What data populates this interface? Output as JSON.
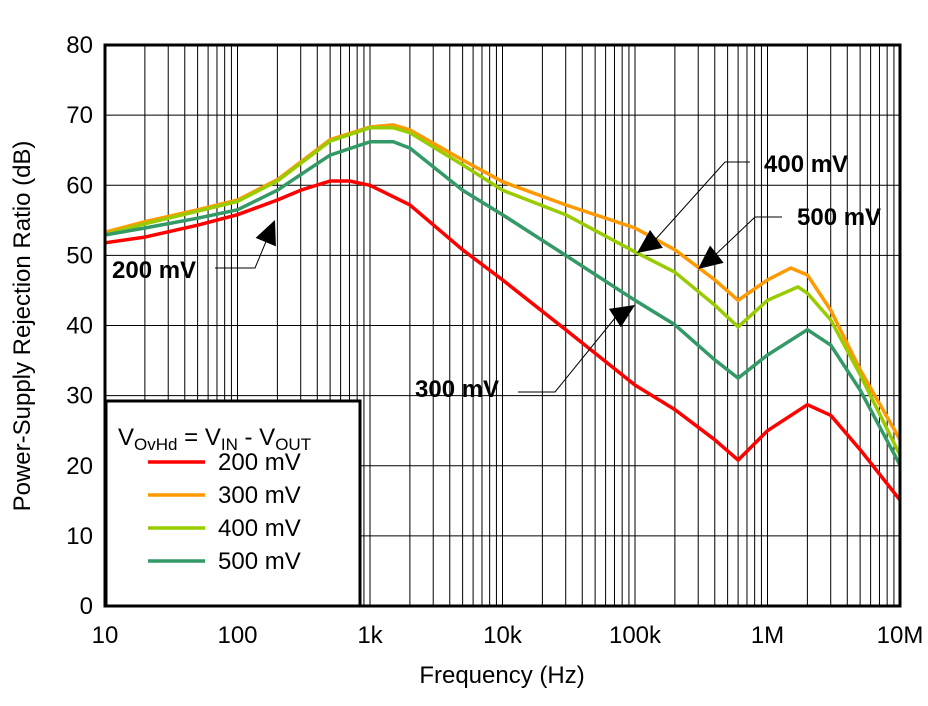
{
  "chart_data": {
    "type": "line",
    "title": "",
    "xlabel": "Frequency (Hz)",
    "ylabel": "Power-Supply Rejection Ratio (dB)",
    "xscale": "log",
    "xlim": [
      10,
      10000000
    ],
    "ylim": [
      0,
      80
    ],
    "grid": true,
    "x_ticks": [
      {
        "value": 10,
        "label": "10"
      },
      {
        "value": 100,
        "label": "100"
      },
      {
        "value": 1000,
        "label": "1k"
      },
      {
        "value": 10000,
        "label": "10k"
      },
      {
        "value": 100000,
        "label": "100k"
      },
      {
        "value": 1000000,
        "label": "1M"
      },
      {
        "value": 10000000,
        "label": "10M"
      }
    ],
    "y_ticks": [
      0,
      10,
      20,
      30,
      40,
      50,
      60,
      70,
      80
    ],
    "legend": {
      "placement": "bottom-left",
      "title": {
        "main": "V",
        "sub1": "OvHd",
        "mid": " = V",
        "sub2": "IN",
        "dash": " - V",
        "sub3": "OUT"
      }
    },
    "series": [
      {
        "name": "200 mV",
        "color": "#ff0000",
        "x": [
          10,
          20,
          50,
          100,
          200,
          300,
          500,
          700,
          1000,
          2000,
          5000,
          10000,
          30000,
          100000,
          200000,
          400000,
          600000,
          1000000,
          2000000,
          3000000,
          5000000,
          10000000
        ],
        "y": [
          51.8,
          52.6,
          54.3,
          55.8,
          57.9,
          59.3,
          60.6,
          60.6,
          60.0,
          57.2,
          50.8,
          46.5,
          39.4,
          31.5,
          28.0,
          23.7,
          20.8,
          25.0,
          28.7,
          27.2,
          22.3,
          15.1
        ]
      },
      {
        "name": "300 mV",
        "color": "#ff9900",
        "x": [
          10,
          20,
          50,
          100,
          200,
          500,
          1000,
          1500,
          2000,
          5000,
          10000,
          30000,
          100000,
          200000,
          400000,
          600000,
          1000000,
          1500000,
          2000000,
          3000000,
          5000000,
          10000000
        ],
        "y": [
          53.3,
          54.8,
          56.5,
          57.9,
          60.8,
          66.5,
          68.3,
          68.6,
          67.9,
          63.6,
          60.5,
          57.2,
          53.9,
          50.8,
          46.5,
          43.6,
          46.5,
          48.2,
          47.2,
          42.2,
          33.7,
          23.7
        ]
      },
      {
        "name": "400 mV",
        "color": "#99cc00",
        "x": [
          10,
          20,
          50,
          100,
          200,
          500,
          1000,
          1500,
          2000,
          5000,
          10000,
          30000,
          100000,
          200000,
          400000,
          600000,
          1000000,
          1700000,
          2000000,
          3000000,
          5000000,
          10000000
        ],
        "y": [
          53.0,
          54.5,
          56.3,
          57.7,
          60.6,
          66.3,
          68.2,
          68.2,
          67.5,
          62.9,
          59.3,
          55.8,
          50.5,
          47.6,
          42.9,
          39.8,
          43.6,
          45.5,
          44.6,
          40.8,
          33.0,
          21.5
        ]
      },
      {
        "name": "500 mV",
        "color": "#339966",
        "x": [
          10,
          20,
          50,
          100,
          200,
          500,
          1000,
          1500,
          2000,
          5000,
          10000,
          30000,
          100000,
          200000,
          400000,
          600000,
          1000000,
          2000000,
          3000000,
          5000000,
          10000000
        ],
        "y": [
          52.9,
          53.9,
          55.3,
          56.5,
          59.3,
          64.3,
          66.2,
          66.2,
          65.3,
          59.3,
          55.8,
          50.0,
          43.6,
          40.1,
          35.1,
          32.5,
          35.8,
          39.4,
          37.2,
          30.8,
          20.1
        ]
      }
    ],
    "annotations": [
      {
        "text": "200 mV",
        "x": 200,
        "y": 55
      },
      {
        "text": "300 mV",
        "x": 100000,
        "y": 43
      },
      {
        "text": "400 mV",
        "x": 100000,
        "y": 51
      },
      {
        "text": "500 mV",
        "x": 300000,
        "y": 48
      }
    ]
  }
}
